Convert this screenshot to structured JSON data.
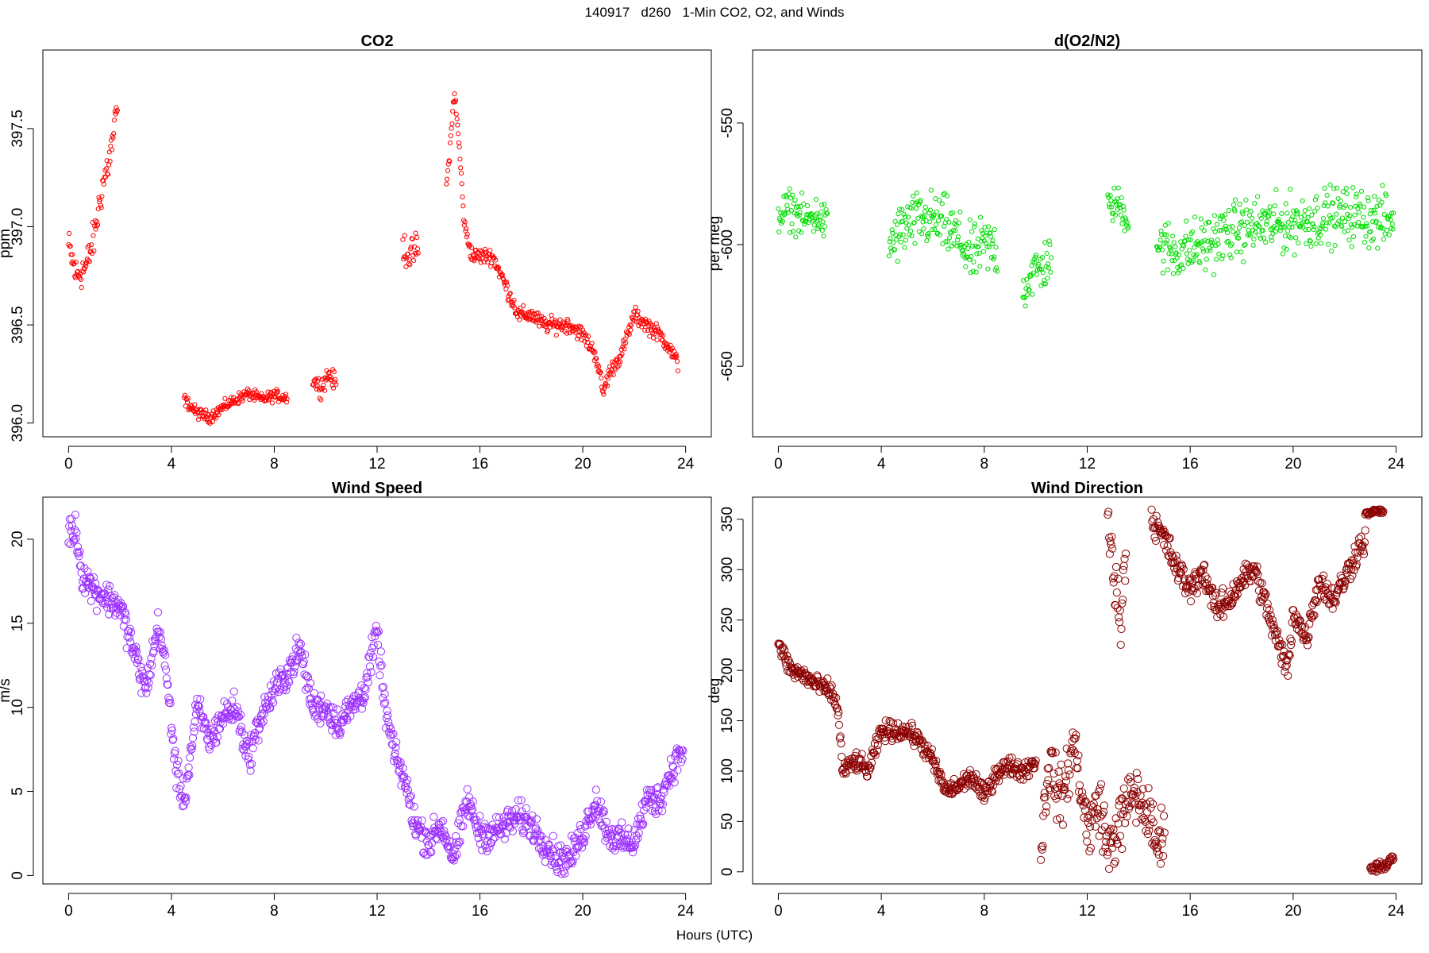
{
  "figure": {
    "title": "140917   d260   1-Min CO2, O2, and Winds",
    "xlabel": "Hours (UTC)"
  },
  "chart_data": [
    {
      "type": "scatter",
      "title": "CO2",
      "ylabel": "ppm",
      "xlabel": "",
      "xlim": [
        -1,
        25
      ],
      "ylim": [
        395.93,
        397.9
      ],
      "xticks": [
        0,
        4,
        8,
        12,
        16,
        20,
        24
      ],
      "yticks": [
        396.0,
        396.5,
        397.0,
        397.5
      ],
      "ytick_labels": [
        "396.0",
        "396.5",
        "397.0",
        "397.5"
      ],
      "color": "#ff0000",
      "segments": [
        {
          "x": [
            0.0,
            0.3,
            0.7,
            1.0,
            1.3,
            1.6,
            1.9
          ],
          "y": [
            396.9,
            396.75,
            396.8,
            396.95,
            397.2,
            397.35,
            397.6
          ],
          "noise": 0.08
        },
        {
          "x": [
            4.5,
            5.0,
            5.5,
            6.0,
            6.5,
            7.0,
            7.5,
            8.0,
            8.5
          ],
          "y": [
            396.12,
            396.05,
            396.03,
            396.08,
            396.12,
            396.15,
            396.12,
            396.14,
            396.13
          ],
          "noise": 0.025
        },
        {
          "x": [
            9.5,
            9.8,
            10.1,
            10.4
          ],
          "y": [
            396.22,
            396.18,
            396.25,
            396.2
          ],
          "noise": 0.04
        },
        {
          "x": [
            13.0,
            13.3,
            13.6
          ],
          "y": [
            396.9,
            396.85,
            396.9
          ],
          "noise": 0.07
        },
        {
          "x": [
            14.7,
            14.9,
            15.0,
            15.2,
            15.4,
            15.7,
            16.0,
            16.5,
            17.0,
            17.5,
            18.0,
            18.5,
            19.0,
            19.5,
            20.0,
            20.5,
            20.8,
            21.0,
            21.5,
            22.0,
            22.5,
            23.0,
            23.3,
            23.7
          ],
          "y": [
            397.2,
            397.5,
            397.7,
            397.4,
            397.0,
            396.85,
            396.85,
            396.85,
            396.7,
            396.55,
            396.55,
            396.5,
            396.5,
            396.5,
            396.45,
            396.35,
            396.15,
            396.25,
            396.35,
            396.55,
            396.5,
            396.45,
            396.4,
            396.3
          ],
          "noise": 0.035
        }
      ]
    },
    {
      "type": "scatter",
      "title": "d(O2/N2)",
      "ylabel": "per meg",
      "xlabel": "",
      "xlim": [
        -1,
        25
      ],
      "ylim": [
        -679,
        -520
      ],
      "xticks": [
        0,
        4,
        8,
        12,
        16,
        20,
        24
      ],
      "yticks": [
        -650,
        -600,
        -550
      ],
      "ytick_labels": [
        "-650",
        "-600",
        "-550"
      ],
      "color": "#00dd00",
      "segments": [
        {
          "x": [
            0.0,
            0.5,
            1.0,
            1.5,
            1.9
          ],
          "y": [
            -588,
            -585,
            -590,
            -588,
            -592
          ],
          "noise": 7
        },
        {
          "x": [
            4.3,
            5.0,
            5.5,
            6.0,
            6.5,
            7.0,
            7.5,
            8.0,
            8.5
          ],
          "y": [
            -600,
            -592,
            -590,
            -590,
            -592,
            -598,
            -605,
            -600,
            -602
          ],
          "noise": 10
        },
        {
          "x": [
            9.5,
            9.8,
            10.2,
            10.6
          ],
          "y": [
            -620,
            -612,
            -610,
            -605
          ],
          "noise": 9
        },
        {
          "x": [
            12.8,
            13.2,
            13.6
          ],
          "y": [
            -585,
            -583,
            -590
          ],
          "noise": 6
        },
        {
          "x": [
            14.7,
            15.5,
            16.5,
            17.5,
            18.5,
            19.5,
            20.5,
            21.5,
            22.5,
            23.5,
            23.9
          ],
          "y": [
            -600,
            -603,
            -600,
            -595,
            -592,
            -592,
            -590,
            -588,
            -588,
            -590,
            -590
          ],
          "noise": 10
        }
      ]
    },
    {
      "type": "scatter",
      "title": "Wind Speed",
      "ylabel": "m/s",
      "xlabel": "",
      "xlim": [
        -1,
        25
      ],
      "ylim": [
        -0.5,
        22.5
      ],
      "xticks": [
        0,
        4,
        8,
        12,
        16,
        20,
        24
      ],
      "yticks": [
        0,
        5,
        10,
        15,
        20
      ],
      "ytick_labels": [
        "0",
        "5",
        "10",
        "15",
        "20"
      ],
      "color": "#9b30ff",
      "segments": [
        {
          "x": [
            0.0,
            0.3,
            0.5,
            1.0,
            1.5,
            2.0,
            2.5,
            3.0,
            3.5,
            3.8,
            4.2,
            4.5,
            5.0,
            5.5,
            6.0,
            6.5,
            7.0,
            7.5,
            8.0,
            8.5,
            9.0,
            9.5,
            10.0,
            10.5,
            11.0,
            11.5,
            12.0,
            12.3,
            12.7,
            13.0,
            13.5,
            14.0,
            14.5,
            15.0,
            15.5,
            16.0,
            16.5,
            17.0,
            17.5,
            18.0,
            18.5,
            19.0,
            19.5,
            20.0,
            20.5,
            21.0,
            21.5,
            22.0,
            22.5,
            23.0,
            23.5,
            23.9
          ],
          "y": [
            20.5,
            20.5,
            18,
            17,
            16.5,
            16,
            13.5,
            11,
            15,
            12,
            6,
            4.5,
            10,
            8,
            9.5,
            10,
            7,
            9.5,
            11,
            12,
            13.5,
            10,
            10,
            9,
            10,
            11,
            14.5,
            10,
            7,
            6,
            3,
            2,
            3,
            1,
            4.5,
            2.5,
            2.5,
            3,
            3.5,
            3,
            2,
            1,
            1,
            2.5,
            4.5,
            2.5,
            2,
            2,
            4.5,
            4.5,
            6.5,
            7.5
          ],
          "noise": 0.8
        }
      ]
    },
    {
      "type": "scatter",
      "title": "Wind Direction",
      "ylabel": "deg",
      "xlabel": "",
      "xlim": [
        -1,
        25
      ],
      "ylim": [
        -12,
        372
      ],
      "xticks": [
        0,
        4,
        8,
        12,
        16,
        20,
        24
      ],
      "yticks": [
        0,
        50,
        100,
        150,
        200,
        250,
        300,
        350
      ],
      "ytick_labels": [
        "0",
        "50",
        "100",
        "150",
        "200",
        "250",
        "300",
        "350"
      ],
      "color": "#8b0000",
      "segments": [
        {
          "x": [
            0.0,
            0.5,
            1.0,
            1.5,
            2.0,
            2.3,
            2.5,
            3.0,
            3.5,
            4.0,
            4.5,
            5.0,
            5.5,
            6.0,
            6.5,
            7.0,
            7.5,
            8.0,
            8.5,
            9.0,
            9.5,
            10.0
          ],
          "y": [
            225,
            200,
            195,
            185,
            180,
            165,
            100,
            110,
            100,
            140,
            140,
            140,
            130,
            110,
            80,
            85,
            95,
            75,
            100,
            105,
            100,
            110
          ],
          "noise": 8
        },
        {
          "x": [
            10.2,
            10.5,
            11.0,
            11.5,
            12.0,
            12.5,
            12.8,
            13.3,
            13.8,
            14.3,
            14.8,
            15.0
          ],
          "y": [
            20,
            110,
            70,
            130,
            40,
            70,
            20,
            50,
            80,
            60,
            20,
            60
          ],
          "noise": 25
        },
        {
          "x": [
            12.8,
            13.0,
            13.3,
            13.5
          ],
          "y": [
            355,
            300,
            250,
            330
          ],
          "noise": 25
        },
        {
          "x": [
            14.5,
            15.0,
            15.5,
            16.0,
            16.5,
            17.0,
            17.5,
            18.0,
            18.5,
            19.0,
            19.5,
            19.8,
            20.0,
            20.5,
            21.0,
            21.5,
            22.0,
            22.5,
            22.8
          ],
          "y": [
            350,
            330,
            300,
            280,
            300,
            260,
            270,
            290,
            300,
            260,
            220,
            200,
            260,
            230,
            290,
            270,
            290,
            320,
            330
          ],
          "noise": 12
        },
        {
          "x": [
            22.8,
            23.2,
            23.5
          ],
          "y": [
            355,
            358,
            358
          ],
          "noise": 2
        },
        {
          "x": [
            23.0,
            23.5,
            23.9
          ],
          "y": [
            3,
            5,
            15
          ],
          "noise": 4
        }
      ]
    }
  ]
}
